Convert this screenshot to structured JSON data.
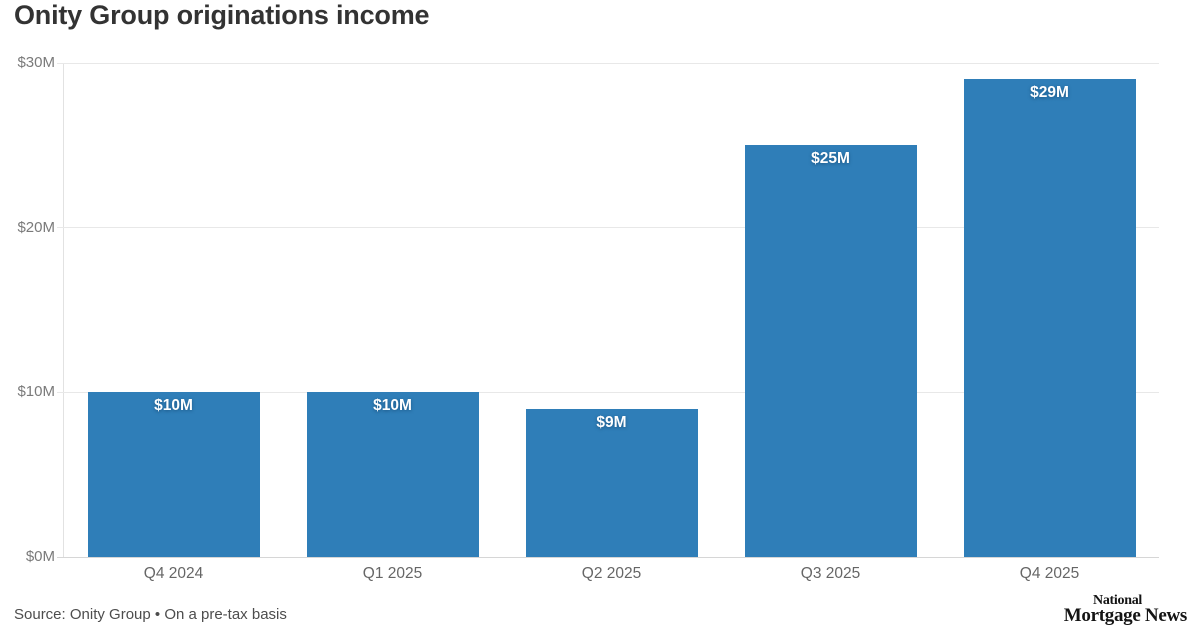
{
  "chart": {
    "title": "Onity Group originations income"
  },
  "chart_data": {
    "type": "bar",
    "title": "Onity Group originations income",
    "categories": [
      "Q4 2024",
      "Q1 2025",
      "Q2 2025",
      "Q3 2025",
      "Q4 2025"
    ],
    "values": [
      10,
      10,
      9,
      25,
      29
    ],
    "bar_labels": [
      "$10M",
      "$10M",
      "$9M",
      "$25M",
      "$29M"
    ],
    "xlabel": "",
    "ylabel": "",
    "ylim": [
      0,
      30
    ],
    "yticks": [
      {
        "value": 0,
        "label": "$0M"
      },
      {
        "value": 10,
        "label": "$10M"
      },
      {
        "value": 20,
        "label": "$20M"
      },
      {
        "value": 30,
        "label": "$30M"
      }
    ],
    "grid": true,
    "legend": "none",
    "bar_color": "#2f7eb8"
  },
  "footer": {
    "source": "Source: Onity Group • On a pre-tax basis",
    "logo_line1": "National",
    "logo_line2": "Mortgage News"
  },
  "colors": {
    "bar": "#2f7eb8",
    "title_text": "#333333",
    "tick_text": "#7a7a7a",
    "category_text": "#666666",
    "gridline": "#e8e8e8",
    "baseline": "#d6d6d6",
    "source_text": "#4d4d4d",
    "logo_text": "#141414",
    "background": "#ffffff"
  }
}
